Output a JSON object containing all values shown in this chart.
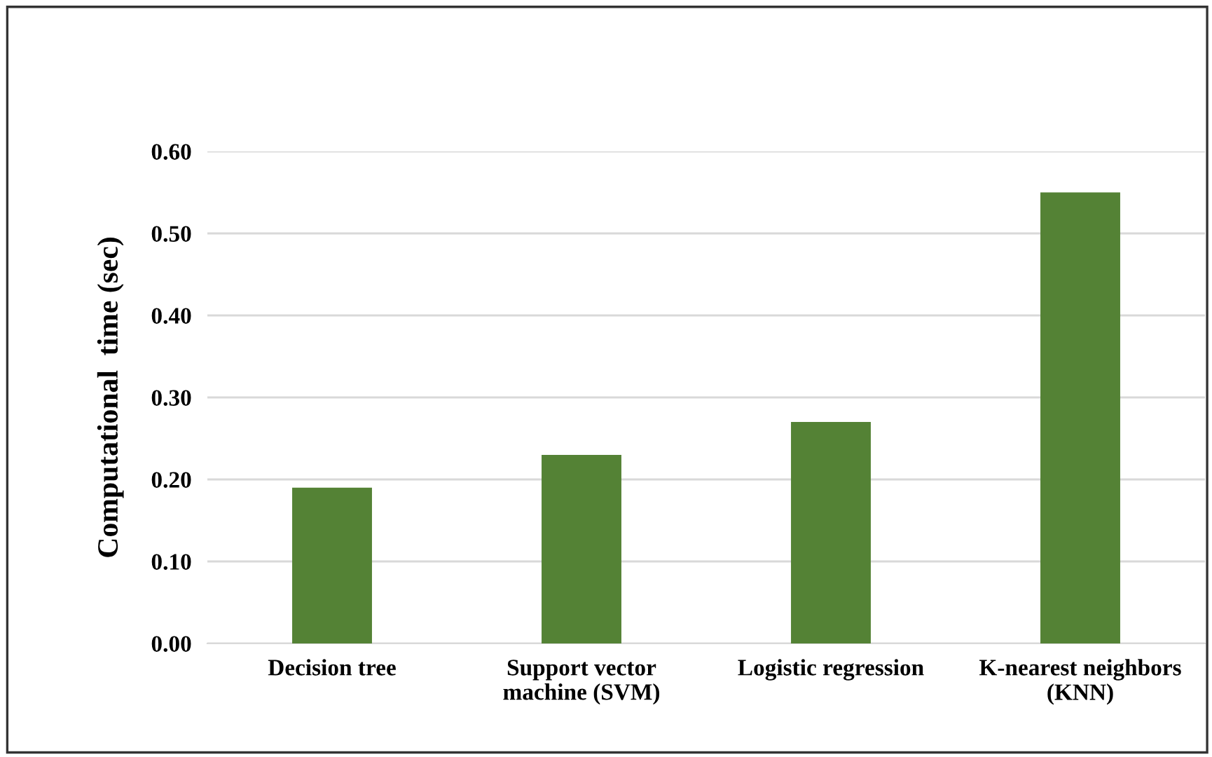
{
  "chart_data": {
    "type": "bar",
    "ylabel": "Computational  time (sec)",
    "categories": [
      "Decision tree",
      "Support vector machine (SVM)",
      "Logistic regression",
      "K-nearest neighbors (KNN)"
    ],
    "values": [
      0.19,
      0.23,
      0.27,
      0.55
    ],
    "color": "#548235",
    "ylim": [
      0,
      0.6
    ],
    "yticks": [
      {
        "value": 0,
        "label": "0.00"
      },
      {
        "value": 0.1,
        "label": "0.10"
      },
      {
        "value": 0.2,
        "label": "0.20"
      },
      {
        "value": 0.3,
        "label": "0.30"
      },
      {
        "value": 0.4,
        "label": "0.40"
      },
      {
        "value": 0.5,
        "label": "0.50"
      },
      {
        "value": 0.6,
        "label": "0.60"
      }
    ],
    "grid": "y"
  }
}
